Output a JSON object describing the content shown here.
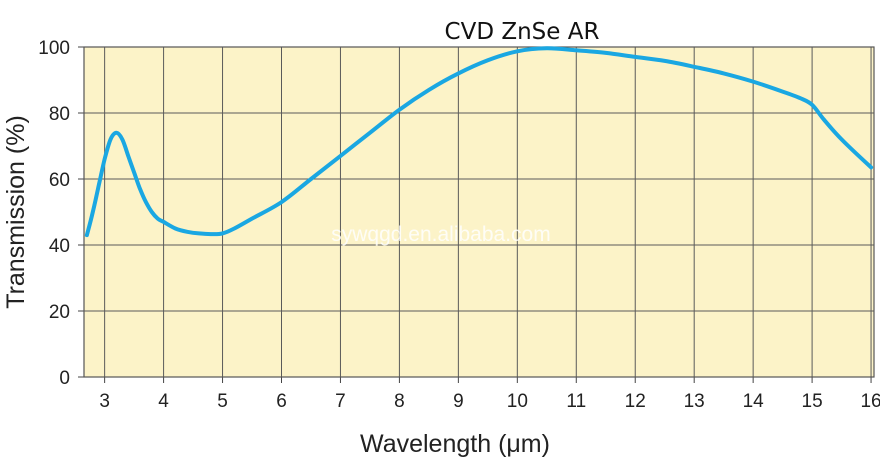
{
  "chart_data": {
    "type": "line",
    "title": "CVD ZnSe AR",
    "xlabel": "Wavelength (μm)",
    "ylabel": "Transmission (%)",
    "xlim": [
      2.65,
      16.05
    ],
    "ylim": [
      0,
      100
    ],
    "x_ticks": [
      3,
      4,
      5,
      6,
      7,
      8,
      9,
      10,
      11,
      12,
      13,
      14,
      15,
      16
    ],
    "y_ticks": [
      0,
      20,
      40,
      60,
      80,
      100
    ],
    "grid": true,
    "background_color": "#fcf3c8",
    "grid_color": "#5a5a5a",
    "series": [
      {
        "color": "#1aa7e2",
        "x": [
          2.7,
          2.8,
          2.9,
          3.0,
          3.1,
          3.2,
          3.3,
          3.4,
          3.5,
          3.6,
          3.7,
          3.8,
          3.9,
          4.0,
          4.2,
          4.4,
          4.6,
          4.8,
          5.0,
          5.2,
          5.5,
          6.0,
          6.5,
          7.0,
          7.5,
          8.0,
          8.5,
          9.0,
          9.5,
          10.0,
          10.5,
          11.0,
          11.5,
          12.0,
          12.5,
          13.0,
          13.5,
          14.0,
          14.5,
          14.8,
          15.0,
          15.2,
          15.5,
          16.0
        ],
        "y": [
          43,
          50,
          58,
          66,
          72,
          74,
          72,
          67,
          62,
          57,
          53,
          50,
          48,
          47,
          45,
          44,
          43.5,
          43.3,
          43.5,
          45,
          48,
          53,
          60,
          67,
          74,
          81,
          87,
          92,
          96,
          98.7,
          99.6,
          99,
          98.2,
          97,
          95.8,
          94,
          92,
          89.5,
          86.5,
          84.5,
          82.5,
          78,
          72,
          63.5
        ]
      }
    ],
    "watermark": "sywqgd.en.alibaba.com"
  }
}
